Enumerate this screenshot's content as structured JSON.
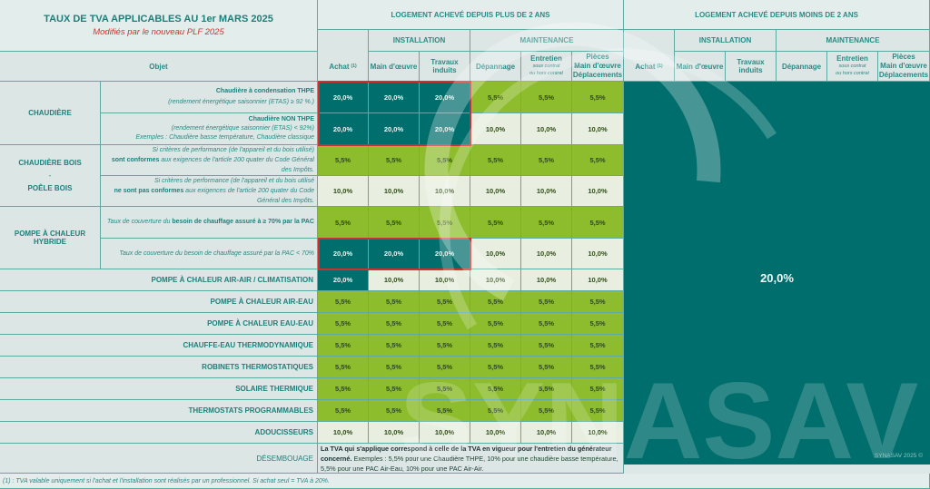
{
  "header": {
    "title": "TAUX DE TVA APPLICABLES AU 1er MARS 2025",
    "subtitle": "Modifiés par le nouveau PLF 2025",
    "objet_label": "Objet",
    "group_plus": "LOGEMENT ACHEVÉ DEPUIS PLUS DE 2 ANS",
    "group_moins": "LOGEMENT ACHEVÉ DEPUIS MOINS DE 2 ANS",
    "installation": "INSTALLATION",
    "maintenance": "MAINTENANCE",
    "columns": {
      "achat": "Achat",
      "achat_note": "(1)",
      "main_oeuvre": "Main d'œuvre",
      "travaux": "Travaux induits",
      "depannage": "Dépannage",
      "entretien": "Entretien",
      "entretien_sub1": "sous contrat",
      "entretien_sub2": "ou hors contrat",
      "pieces1": "Pièces",
      "pieces2": "Main d'œuvre",
      "pieces3": "Déplacements"
    }
  },
  "groups": {
    "chaudiere": "CHAUDIÈRE",
    "bois1": "CHAUDIÈRE BOIS",
    "bois_sep": "-",
    "bois2": "POÊLE BOIS",
    "hybride": "POMPE À CHALEUR HYBRIDE"
  },
  "subrows": {
    "thpe_title": "Chaudière à condensation THPE",
    "thpe_desc": "(rendement énergétique saisonnier (ETAS) ≥ 92 %.)",
    "nonthpe_title": "Chaudière NON THPE",
    "nonthpe_desc": "(rendement énergétique saisonnier (ETAS) < 92%)",
    "nonthpe_ex": "Exemples : Chaudière basse température, Chaudière classique",
    "bois_ok_1": "Si critères de performance (de l'appareil et du bois utilisé)",
    "bois_ok_2b": "sont conformes",
    "bois_ok_2": " aux exigences de l'article 200 quater du Code Général",
    "bois_ok_3": "des Impôts.",
    "bois_nok_1": "Si critères de performance (de l'appareil et du bois utilisé",
    "bois_nok_2b": "ne sont pas conformes",
    "bois_nok_2": " aux exigences de l'article 200 quater du Code",
    "bois_nok_3": "Général des Impôts.",
    "hyb_hi_a": "Taux de couverture du ",
    "hyb_hi_b": "besoin de chauffage assuré à ≥ 70% par la PAC",
    "hyb_lo": "Taux de couverture du besoin de chauffage assuré par la PAC < 70%"
  },
  "rows": [
    {
      "label": "THPE",
      "values": [
        "20,0%",
        "20,0%",
        "20,0%",
        "5,5%",
        "5,5%",
        "5,5%"
      ]
    },
    {
      "label": "NON THPE",
      "values": [
        "20,0%",
        "20,0%",
        "20,0%",
        "10,0%",
        "10,0%",
        "10,0%"
      ]
    },
    {
      "label": "BOIS conformes",
      "values": [
        "5,5%",
        "5,5%",
        "5,5%",
        "5,5%",
        "5,5%",
        "5,5%"
      ]
    },
    {
      "label": "BOIS non conformes",
      "values": [
        "10,0%",
        "10,0%",
        "10,0%",
        "10,0%",
        "10,0%",
        "10,0%"
      ]
    },
    {
      "label": "HYBRIDE ≥70%",
      "values": [
        "5,5%",
        "5,5%",
        "5,5%",
        "5,5%",
        "5,5%",
        "5,5%"
      ]
    },
    {
      "label": "HYBRIDE <70%",
      "values": [
        "20,0%",
        "20,0%",
        "20,0%",
        "10,0%",
        "10,0%",
        "10,0%"
      ]
    },
    {
      "label": "POMPE À CHALEUR AIR-AIR / CLIMATISATION",
      "values": [
        "20,0%",
        "10,0%",
        "10,0%",
        "10,0%",
        "10,0%",
        "10,0%"
      ]
    },
    {
      "label": "POMPE À CHALEUR AIR-EAU",
      "values": [
        "5,5%",
        "5,5%",
        "5,5%",
        "5,5%",
        "5,5%",
        "5,5%"
      ]
    },
    {
      "label": "POMPE À CHALEUR EAU-EAU",
      "values": [
        "5,5%",
        "5,5%",
        "5,5%",
        "5,5%",
        "5,5%",
        "5,5%"
      ]
    },
    {
      "label": "CHAUFFE-EAU THERMODYNAMIQUE",
      "values": [
        "5,5%",
        "5,5%",
        "5,5%",
        "5,5%",
        "5,5%",
        "5,5%"
      ]
    },
    {
      "label": "ROBINETS THERMOSTATIQUES",
      "values": [
        "5,5%",
        "5,5%",
        "5,5%",
        "5,5%",
        "5,5%",
        "5,5%"
      ]
    },
    {
      "label": "SOLAIRE THERMIQUE",
      "values": [
        "5,5%",
        "5,5%",
        "5,5%",
        "5,5%",
        "5,5%",
        "5,5%"
      ]
    },
    {
      "label": "THERMOSTATS PROGRAMMABLES",
      "values": [
        "5,5%",
        "5,5%",
        "5,5%",
        "5,5%",
        "5,5%",
        "5,5%"
      ]
    },
    {
      "label": "ADOUCISSEURS",
      "values": [
        "10,0%",
        "10,0%",
        "10,0%",
        "10,0%",
        "10,0%",
        "10,0%"
      ]
    }
  ],
  "desembouage": {
    "label": "DÉSEMBOUAGE",
    "text_bold": "La TVA qui s'applique correspond à celle de la TVA en vigueur pour l'entretien du générateur concerné.",
    "text": " Exemples : 5,5% pour une Chaudière THPE, 10% pour une chaudière basse température, 5,5% pour une PAC Air-Eau, 10% pour une PAC Air-Air."
  },
  "moins_2_ans_value": "20,0%",
  "copyright": "SYNASAV 2025 ©",
  "watermark": "SYNASAV",
  "footnote": "(1) : TVA valable uniquement si l'achat et l'installation sont réalisés par un professionnel. Si achat seul = TVA à 20%.",
  "colors": {
    "teal": "#006e6d",
    "green": "#8dbd2d",
    "pale": "#e8efe0",
    "red": "#d0302d",
    "title": "#1d7f79"
  }
}
